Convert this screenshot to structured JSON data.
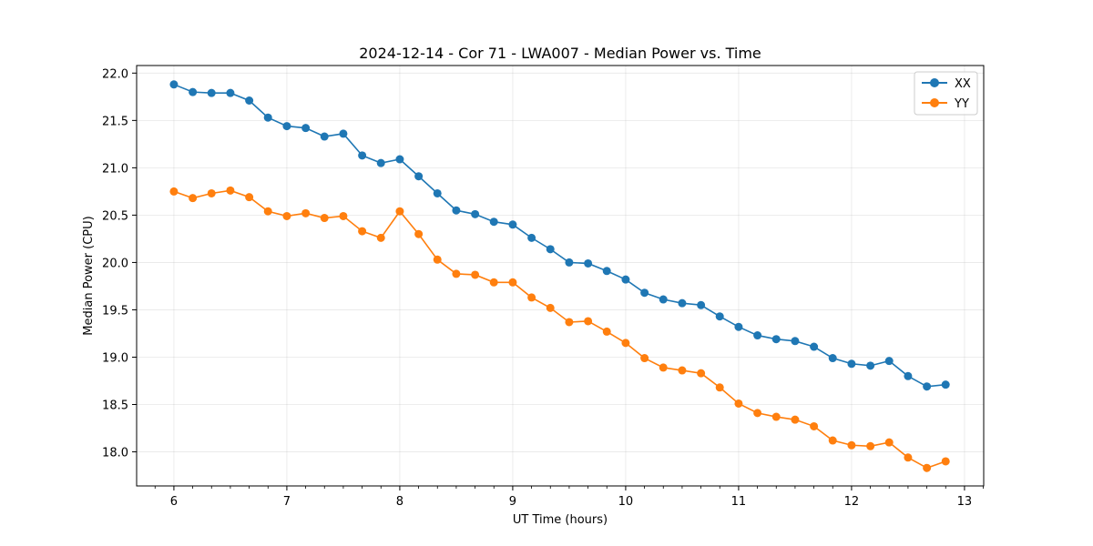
{
  "chart_data": {
    "type": "line",
    "title": "2024-12-14 - Cor 71 - LWA007 - Median Power vs. Time",
    "xlabel": "UT Time (hours)",
    "ylabel": "Median Power (CPU)",
    "xlim": [
      5.67,
      13.17
    ],
    "ylim": [
      17.64,
      22.08
    ],
    "xticks": [
      6,
      7,
      8,
      9,
      10,
      11,
      12,
      13
    ],
    "xtick_labels": [
      "6",
      "7",
      "8",
      "9",
      "10",
      "11",
      "12",
      "13"
    ],
    "yticks": [
      18.0,
      18.5,
      19.0,
      19.5,
      20.0,
      20.5,
      21.0,
      21.5,
      22.0
    ],
    "ytick_labels": [
      "18.0",
      "18.5",
      "19.0",
      "19.5",
      "20.0",
      "20.5",
      "21.0",
      "21.5",
      "22.0"
    ],
    "grid": true,
    "legend_position": "top-right",
    "x": [
      6.0,
      6.167,
      6.333,
      6.5,
      6.667,
      6.833,
      7.0,
      7.167,
      7.333,
      7.5,
      7.667,
      7.833,
      8.0,
      8.167,
      8.333,
      8.5,
      8.667,
      8.833,
      9.0,
      9.167,
      9.333,
      9.5,
      9.667,
      9.833,
      10.0,
      10.167,
      10.333,
      10.5,
      10.667,
      10.833,
      11.0,
      11.167,
      11.333,
      11.5,
      11.667,
      11.833,
      12.0,
      12.167,
      12.333,
      12.5,
      12.667,
      12.833
    ],
    "series": [
      {
        "name": "XX",
        "color": "#1f77b4",
        "values": [
          21.88,
          21.8,
          21.79,
          21.79,
          21.71,
          21.53,
          21.44,
          21.42,
          21.33,
          21.36,
          21.13,
          21.05,
          21.09,
          20.91,
          20.73,
          20.55,
          20.51,
          20.43,
          20.4,
          20.26,
          20.14,
          20.0,
          19.99,
          19.91,
          19.82,
          19.68,
          19.61,
          19.57,
          19.55,
          19.43,
          19.32,
          19.23,
          19.19,
          19.17,
          19.11,
          18.99,
          18.93,
          18.91,
          18.96,
          18.8,
          18.69,
          18.71
        ]
      },
      {
        "name": "YY",
        "color": "#ff7f0e",
        "values": [
          20.75,
          20.68,
          20.73,
          20.76,
          20.69,
          20.54,
          20.49,
          20.52,
          20.47,
          20.49,
          20.33,
          20.26,
          20.54,
          20.3,
          20.03,
          19.88,
          19.87,
          19.79,
          19.79,
          19.63,
          19.52,
          19.37,
          19.38,
          19.27,
          19.15,
          18.99,
          18.89,
          18.86,
          18.83,
          18.68,
          18.51,
          18.41,
          18.37,
          18.34,
          18.27,
          18.12,
          18.07,
          18.06,
          18.1,
          17.94,
          17.83,
          17.9
        ]
      }
    ]
  }
}
